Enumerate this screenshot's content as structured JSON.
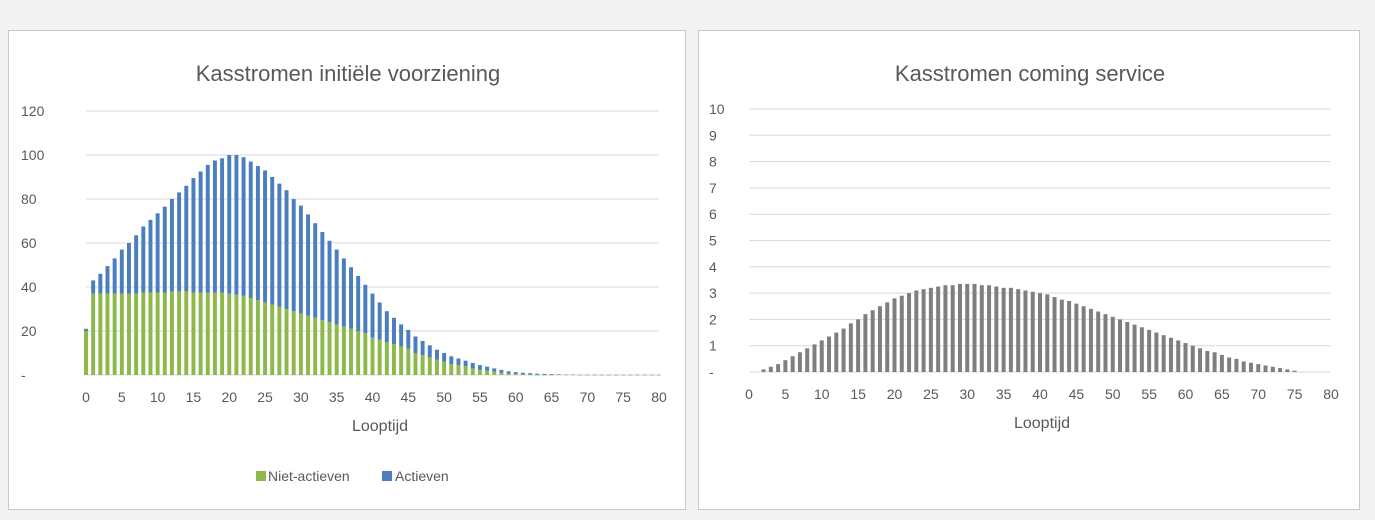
{
  "chart_data": [
    {
      "type": "bar",
      "stacked": true,
      "title": "Kasstromen initiële voorziening",
      "xlabel": "Looptijd",
      "ylabel": "",
      "ylim": [
        0,
        120
      ],
      "y_ticks": [
        "-",
        "20",
        "40",
        "60",
        "80",
        "100",
        "120"
      ],
      "x_ticks": [
        "0",
        "5",
        "10",
        "15",
        "20",
        "25",
        "30",
        "35",
        "40",
        "45",
        "50",
        "55",
        "60",
        "65",
        "70",
        "75",
        "80"
      ],
      "grid": true,
      "legend": "bottom",
      "x": [
        0,
        1,
        2,
        3,
        4,
        5,
        6,
        7,
        8,
        9,
        10,
        11,
        12,
        13,
        14,
        15,
        16,
        17,
        18,
        19,
        20,
        21,
        22,
        23,
        24,
        25,
        26,
        27,
        28,
        29,
        30,
        31,
        32,
        33,
        34,
        35,
        36,
        37,
        38,
        39,
        40,
        41,
        42,
        43,
        44,
        45,
        46,
        47,
        48,
        49,
        50,
        51,
        52,
        53,
        54,
        55,
        56,
        57,
        58,
        59,
        60,
        61,
        62,
        63,
        64,
        65,
        66,
        67,
        68,
        69,
        70,
        71,
        72,
        73,
        74,
        75,
        76,
        77,
        78,
        79,
        80
      ],
      "series": [
        {
          "name": "Niet-actieven",
          "color": "#8db84a",
          "values": [
            20,
            37,
            37,
            37,
            37,
            37,
            37,
            37,
            37.5,
            37.5,
            37.5,
            37.5,
            38,
            38,
            38,
            37.5,
            37.5,
            37.5,
            37.5,
            37.5,
            37,
            36.5,
            36,
            35,
            34,
            33,
            32,
            31,
            30,
            29,
            28,
            27,
            26,
            25,
            24,
            23,
            22,
            21,
            20,
            19,
            17,
            16,
            15,
            14,
            13,
            12,
            10,
            9,
            8,
            7,
            6,
            5,
            4.5,
            4,
            3,
            2.5,
            2,
            1.5,
            1,
            0.7,
            0.5,
            0.3,
            0.2,
            0.1,
            0.1,
            0.1,
            0,
            0,
            0,
            0,
            0,
            0,
            0,
            0,
            0,
            0,
            0,
            0,
            0,
            0,
            0
          ]
        },
        {
          "name": "Actieven",
          "color": "#4a7ebf",
          "values": [
            1,
            6,
            9,
            12.5,
            16,
            20,
            23,
            26.5,
            30,
            33,
            36,
            39,
            42,
            45,
            48,
            52,
            55,
            58,
            60,
            61,
            63,
            63.5,
            63,
            62,
            61,
            60,
            58,
            56,
            54,
            51,
            49,
            46,
            43,
            40,
            37,
            34,
            31,
            28,
            25,
            22,
            20,
            17,
            14,
            12,
            10,
            8.5,
            7.5,
            6.5,
            5.5,
            4.5,
            4,
            3.5,
            3,
            2.5,
            2.5,
            2,
            1.8,
            1.5,
            1.3,
            1,
            0.8,
            0.7,
            0.6,
            0.5,
            0.4,
            0.3,
            0.3,
            0.2,
            0.2,
            0.1,
            0.1,
            0.1,
            0.1,
            0.1,
            0.1,
            0.1,
            0.1,
            0.1,
            0.1,
            0.1,
            0.1
          ]
        }
      ]
    },
    {
      "type": "bar",
      "title": "Kasstromen coming service",
      "xlabel": "Looptijd",
      "ylabel": "",
      "ylim": [
        0,
        10
      ],
      "y_ticks": [
        "-",
        "1",
        "2",
        "3",
        "4",
        "5",
        "6",
        "7",
        "8",
        "9",
        "10"
      ],
      "x_ticks": [
        "0",
        "5",
        "10",
        "15",
        "20",
        "25",
        "30",
        "35",
        "40",
        "45",
        "50",
        "55",
        "60",
        "65",
        "70",
        "75",
        "80"
      ],
      "grid": true,
      "x": [
        0,
        1,
        2,
        3,
        4,
        5,
        6,
        7,
        8,
        9,
        10,
        11,
        12,
        13,
        14,
        15,
        16,
        17,
        18,
        19,
        20,
        21,
        22,
        23,
        24,
        25,
        26,
        27,
        28,
        29,
        30,
        31,
        32,
        33,
        34,
        35,
        36,
        37,
        38,
        39,
        40,
        41,
        42,
        43,
        44,
        45,
        46,
        47,
        48,
        49,
        50,
        51,
        52,
        53,
        54,
        55,
        56,
        57,
        58,
        59,
        60,
        61,
        62,
        63,
        64,
        65,
        66,
        67,
        68,
        69,
        70,
        71,
        72,
        73,
        74,
        75,
        76,
        77,
        78,
        79,
        80
      ],
      "series": [
        {
          "color": "#7f7f7f",
          "values": [
            0,
            0,
            0.1,
            0.2,
            0.3,
            0.45,
            0.6,
            0.75,
            0.9,
            1.05,
            1.2,
            1.35,
            1.5,
            1.65,
            1.85,
            2.0,
            2.2,
            2.35,
            2.5,
            2.65,
            2.8,
            2.9,
            3.0,
            3.1,
            3.15,
            3.2,
            3.25,
            3.3,
            3.3,
            3.35,
            3.35,
            3.35,
            3.3,
            3.3,
            3.25,
            3.2,
            3.2,
            3.15,
            3.1,
            3.05,
            3.0,
            2.95,
            2.85,
            2.75,
            2.7,
            2.6,
            2.5,
            2.4,
            2.3,
            2.2,
            2.1,
            2.0,
            1.9,
            1.8,
            1.7,
            1.6,
            1.5,
            1.4,
            1.3,
            1.2,
            1.1,
            1.0,
            0.9,
            0.8,
            0.75,
            0.65,
            0.55,
            0.5,
            0.4,
            0.35,
            0.3,
            0.25,
            0.2,
            0.15,
            0.1,
            0.05,
            0,
            0,
            0,
            0,
            0
          ]
        }
      ]
    }
  ]
}
